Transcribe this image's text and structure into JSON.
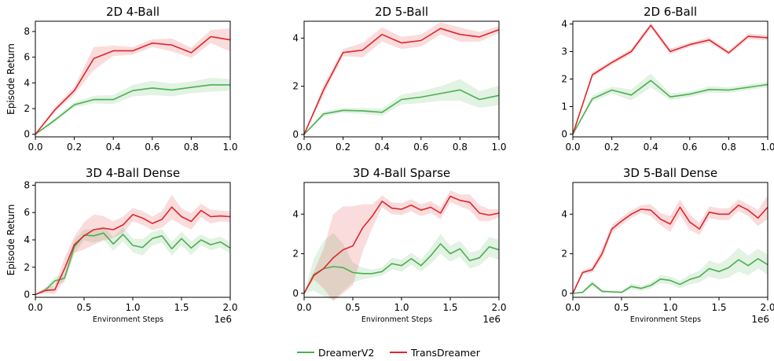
{
  "colors": {
    "dreamer": "#4caf50",
    "trans": "#e0262b"
  },
  "legend": [
    "DreamerV2",
    "TransDreamer"
  ],
  "chart_data": [
    {
      "type": "line",
      "title": "2D 4-Ball",
      "ylabel": "Episode Return",
      "xlabel": "",
      "xlim": [
        0,
        1.0
      ],
      "ylim": [
        -0.2,
        8.8
      ],
      "xticks": [
        "0.0",
        "0.2",
        "0.4",
        "0.6",
        "0.8",
        "1.0"
      ],
      "yticks": [
        "0",
        "2",
        "4",
        "6",
        "8"
      ],
      "x": [
        0,
        0.1,
        0.2,
        0.3,
        0.4,
        0.5,
        0.6,
        0.7,
        0.8,
        0.9,
        1.0
      ],
      "series": [
        {
          "name": "DreamerV2",
          "values": [
            0,
            1.1,
            2.3,
            2.7,
            2.7,
            3.4,
            3.6,
            3.45,
            3.65,
            3.85,
            3.85
          ],
          "band": [
            0,
            0.15,
            0.2,
            0.3,
            0.35,
            0.45,
            0.55,
            0.5,
            0.45,
            0.55,
            0.45
          ]
        },
        {
          "name": "TransDreamer",
          "values": [
            0,
            1.9,
            3.4,
            5.9,
            6.5,
            6.5,
            7.1,
            6.95,
            6.35,
            7.6,
            7.35
          ],
          "band": [
            0,
            0.2,
            0.3,
            0.9,
            0.4,
            0.3,
            0.3,
            0.5,
            0.4,
            0.5,
            0.9
          ]
        }
      ]
    },
    {
      "type": "line",
      "title": "2D 5-Ball",
      "ylabel": "",
      "xlabel": "",
      "xlim": [
        0,
        1.0
      ],
      "ylim": [
        -0.1,
        4.7
      ],
      "xticks": [
        "0.0",
        "0.2",
        "0.4",
        "0.6",
        "0.8",
        "1.0"
      ],
      "yticks": [
        "0",
        "2",
        "4"
      ],
      "x": [
        0,
        0.1,
        0.2,
        0.3,
        0.4,
        0.5,
        0.6,
        0.7,
        0.8,
        0.9,
        1.0
      ],
      "series": [
        {
          "name": "DreamerV2",
          "values": [
            0,
            0.85,
            1.0,
            0.98,
            0.92,
            1.45,
            1.55,
            1.7,
            1.85,
            1.45,
            1.62
          ],
          "band": [
            0,
            0.1,
            0.1,
            0.12,
            0.15,
            0.2,
            0.25,
            0.3,
            0.45,
            0.35,
            0.4
          ]
        },
        {
          "name": "TransDreamer",
          "values": [
            0,
            1.85,
            3.4,
            3.5,
            4.15,
            3.8,
            3.9,
            4.4,
            4.15,
            4.05,
            4.35
          ],
          "band": [
            0,
            0.2,
            0.15,
            0.3,
            0.3,
            0.25,
            0.25,
            0.25,
            0.3,
            0.2,
            0.15
          ]
        }
      ]
    },
    {
      "type": "line",
      "title": "2D 6-Ball",
      "ylabel": "",
      "xlabel": "",
      "xlim": [
        0,
        1.0
      ],
      "ylim": [
        -0.1,
        4.1
      ],
      "xticks": [
        "0.0",
        "0.2",
        "0.4",
        "0.6",
        "0.8",
        "1.0"
      ],
      "yticks": [
        "0",
        "1",
        "2",
        "3",
        "4"
      ],
      "x": [
        0,
        0.1,
        0.2,
        0.3,
        0.4,
        0.5,
        0.6,
        0.7,
        0.8,
        0.9,
        1.0
      ],
      "series": [
        {
          "name": "DreamerV2",
          "values": [
            0,
            1.28,
            1.6,
            1.42,
            1.95,
            1.35,
            1.45,
            1.62,
            1.6,
            1.7,
            1.8
          ],
          "band": [
            0,
            0.12,
            0.12,
            0.2,
            0.25,
            0.12,
            0.1,
            0.12,
            0.1,
            0.1,
            0.1
          ]
        },
        {
          "name": "TransDreamer",
          "values": [
            0,
            2.15,
            2.6,
            3.0,
            3.95,
            3.0,
            3.25,
            3.42,
            2.95,
            3.55,
            3.5
          ],
          "band": [
            0,
            0.1,
            0.08,
            0.1,
            0.1,
            0.1,
            0.08,
            0.1,
            0.08,
            0.1,
            0.1
          ]
        }
      ]
    },
    {
      "type": "line",
      "title": "3D 4-Ball Dense",
      "ylabel": "Episode Return",
      "xlabel": "Environment Steps",
      "xlim": [
        0,
        2.0
      ],
      "ylim": [
        -0.2,
        8.2
      ],
      "xscale_label": "1e6",
      "xticks": [
        "0.0",
        "0.5",
        "1.0",
        "1.5",
        "2.0"
      ],
      "yticks": [
        "0",
        "2",
        "4",
        "6",
        "8"
      ],
      "x": [
        0,
        0.1,
        0.2,
        0.3,
        0.4,
        0.5,
        0.6,
        0.7,
        0.8,
        0.9,
        1.0,
        1.1,
        1.2,
        1.3,
        1.4,
        1.5,
        1.6,
        1.7,
        1.8,
        1.9,
        2.0
      ],
      "series": [
        {
          "name": "DreamerV2",
          "values": [
            0,
            0.3,
            1.0,
            1.2,
            3.5,
            4.35,
            4.3,
            4.5,
            3.7,
            4.4,
            3.6,
            3.45,
            4.1,
            4.3,
            3.35,
            4.1,
            3.4,
            4.0,
            3.65,
            3.85,
            3.4
          ],
          "band": [
            0,
            0.2,
            0.3,
            0.3,
            0.5,
            0.4,
            0.5,
            0.5,
            0.5,
            0.5,
            0.5,
            0.6,
            0.5,
            0.5,
            0.5,
            0.5,
            0.5,
            0.4,
            0.4,
            0.4,
            0.4
          ]
        },
        {
          "name": "TransDreamer",
          "values": [
            0,
            0.3,
            0.35,
            1.9,
            3.65,
            4.3,
            4.75,
            4.85,
            4.75,
            5.1,
            5.85,
            5.6,
            5.2,
            5.5,
            6.4,
            5.7,
            5.35,
            6.15,
            5.7,
            5.75,
            5.7
          ],
          "band": [
            0,
            0.2,
            0.3,
            0.8,
            0.6,
            1.0,
            1.1,
            0.9,
            0.6,
            0.6,
            0.5,
            0.5,
            0.5,
            0.6,
            0.9,
            0.6,
            0.6,
            0.5,
            0.5,
            0.4,
            0.4
          ]
        }
      ]
    },
    {
      "type": "line",
      "title": "3D 4-Ball Sparse",
      "ylabel": "",
      "xlabel": "Environment Steps",
      "xlim": [
        0,
        2.0
      ],
      "ylim": [
        -0.2,
        5.6
      ],
      "xscale_label": "1e6",
      "xticks": [
        "0.0",
        "0.5",
        "1.0",
        "1.5",
        "2.0"
      ],
      "yticks": [
        "0",
        "2",
        "4"
      ],
      "x": [
        0,
        0.1,
        0.2,
        0.3,
        0.4,
        0.5,
        0.6,
        0.7,
        0.8,
        0.9,
        1.0,
        1.1,
        1.2,
        1.3,
        1.4,
        1.5,
        1.6,
        1.7,
        1.8,
        1.9,
        2.0
      ],
      "series": [
        {
          "name": "DreamerV2",
          "values": [
            0,
            0.95,
            1.25,
            1.35,
            1.3,
            1.05,
            1.0,
            1.0,
            1.1,
            1.5,
            1.4,
            1.75,
            1.4,
            1.9,
            2.5,
            2.0,
            2.25,
            1.65,
            1.8,
            2.35,
            2.2
          ],
          "band": [
            0,
            0.8,
            1.4,
            1.7,
            1.2,
            0.5,
            0.3,
            0.2,
            0.2,
            0.3,
            0.3,
            0.3,
            0.3,
            0.4,
            0.5,
            0.4,
            0.4,
            0.4,
            0.4,
            0.5,
            0.5
          ]
        },
        {
          "name": "TransDreamer",
          "values": [
            0,
            0.9,
            1.25,
            1.8,
            2.2,
            2.4,
            3.3,
            3.9,
            4.65,
            4.3,
            4.25,
            4.45,
            4.2,
            4.35,
            4.05,
            4.9,
            4.7,
            4.6,
            4.05,
            3.95,
            4.05
          ],
          "band": [
            0,
            0.2,
            1.0,
            2.2,
            2.2,
            2.0,
            1.2,
            0.6,
            0.3,
            0.3,
            0.3,
            0.3,
            0.3,
            0.3,
            0.3,
            0.3,
            0.3,
            0.4,
            0.4,
            0.3,
            0.2
          ]
        }
      ]
    },
    {
      "type": "line",
      "title": "3D 5-Ball Dense",
      "ylabel": "",
      "xlabel": "Environment Steps",
      "xlim": [
        0,
        2.0
      ],
      "ylim": [
        -0.2,
        5.6
      ],
      "xscale_label": "1e6",
      "xticks": [
        "0.0",
        "0.5",
        "1.0",
        "1.5",
        "2.0"
      ],
      "yticks": [
        "0",
        "2",
        "4"
      ],
      "x": [
        0,
        0.1,
        0.2,
        0.3,
        0.4,
        0.5,
        0.6,
        0.7,
        0.8,
        0.9,
        1.0,
        1.1,
        1.2,
        1.3,
        1.4,
        1.5,
        1.6,
        1.7,
        1.8,
        1.9,
        2.0
      ],
      "series": [
        {
          "name": "DreamerV2",
          "values": [
            0,
            0.05,
            0.5,
            0.1,
            0.08,
            0.05,
            0.35,
            0.25,
            0.4,
            0.72,
            0.65,
            0.45,
            0.7,
            0.85,
            1.25,
            1.1,
            1.3,
            1.7,
            1.4,
            1.75,
            1.45
          ],
          "band": [
            0,
            0.05,
            0.15,
            0.08,
            0.05,
            0.05,
            0.15,
            0.12,
            0.15,
            0.2,
            0.2,
            0.2,
            0.25,
            0.3,
            0.4,
            0.4,
            0.5,
            0.6,
            0.5,
            0.5,
            0.5
          ]
        },
        {
          "name": "TransDreamer",
          "values": [
            0,
            1.05,
            1.2,
            2.0,
            3.25,
            3.65,
            4.0,
            4.25,
            4.2,
            3.75,
            3.5,
            4.35,
            3.6,
            3.25,
            4.1,
            4.0,
            4.0,
            4.45,
            4.2,
            3.8,
            4.35
          ],
          "band": [
            0,
            0.1,
            0.15,
            0.25,
            0.2,
            0.2,
            0.2,
            0.2,
            0.3,
            0.3,
            0.4,
            0.4,
            0.4,
            0.3,
            0.3,
            0.3,
            0.3,
            0.3,
            0.3,
            0.4,
            0.6
          ]
        }
      ]
    }
  ]
}
